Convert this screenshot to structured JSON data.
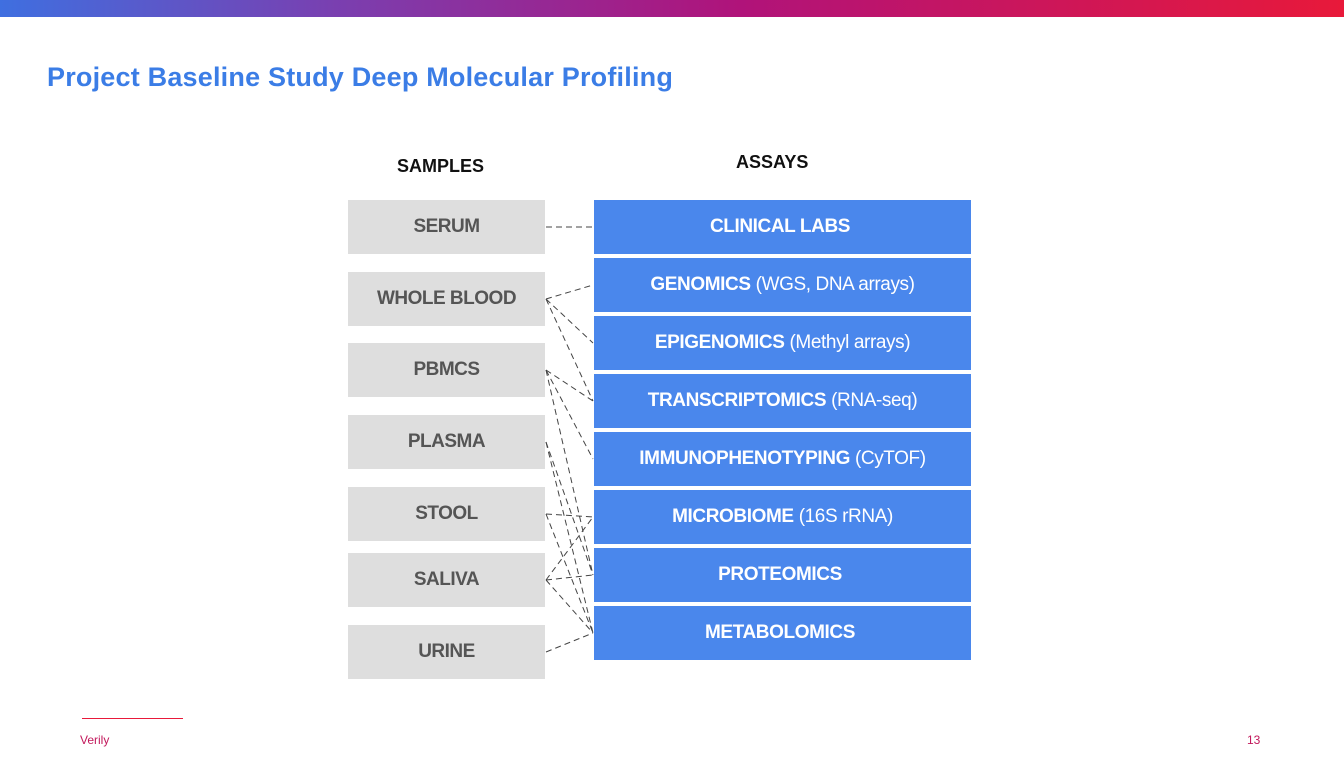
{
  "slide": {
    "title": "Project Baseline Study Deep Molecular Profiling",
    "samples_header": "SAMPLES",
    "assays_header": "ASSAYS",
    "footer_brand": "Verily",
    "page_number": "13"
  },
  "samples": [
    "SERUM",
    "WHOLE BLOOD",
    "PBMCS",
    "PLASMA",
    "STOOL",
    "SALIVA",
    "URINE"
  ],
  "assays": [
    {
      "bold": "CLINICAL LABS",
      "normal": ""
    },
    {
      "bold": "GENOMICS",
      "normal": "(WGS, DNA arrays)"
    },
    {
      "bold": "EPIGENOMICS",
      "normal": "(Methyl arrays)"
    },
    {
      "bold": "TRANSCRIPTOMICS",
      "normal": "(RNA-seq)"
    },
    {
      "bold": "IMMUNOPHENOTYPING",
      "normal": "(CyTOF)"
    },
    {
      "bold": "MICROBIOME",
      "normal": "(16S rRNA)"
    },
    {
      "bold": "PROTEOMICS",
      "normal": ""
    },
    {
      "bold": "METABOLOMICS",
      "normal": ""
    }
  ],
  "links": [
    [
      "SERUM",
      "CLINICAL LABS"
    ],
    [
      "WHOLE BLOOD",
      "GENOMICS"
    ],
    [
      "WHOLE BLOOD",
      "EPIGENOMICS"
    ],
    [
      "WHOLE BLOOD",
      "TRANSCRIPTOMICS"
    ],
    [
      "PBMCS",
      "TRANSCRIPTOMICS"
    ],
    [
      "PBMCS",
      "IMMUNOPHENOTYPING"
    ],
    [
      "PBMCS",
      "PROTEOMICS"
    ],
    [
      "PLASMA",
      "PROTEOMICS"
    ],
    [
      "PLASMA",
      "METABOLOMICS"
    ],
    [
      "STOOL",
      "MICROBIOME"
    ],
    [
      "STOOL",
      "METABOLOMICS"
    ],
    [
      "SALIVA",
      "MICROBIOME"
    ],
    [
      "SALIVA",
      "PROTEOMICS"
    ],
    [
      "SALIVA",
      "METABOLOMICS"
    ],
    [
      "URINE",
      "METABOLOMICS"
    ]
  ],
  "colors": {
    "title": "#3b7de6",
    "assay_box": "#4a87ec",
    "sample_box": "#dedede",
    "accent": "#e8193a"
  }
}
